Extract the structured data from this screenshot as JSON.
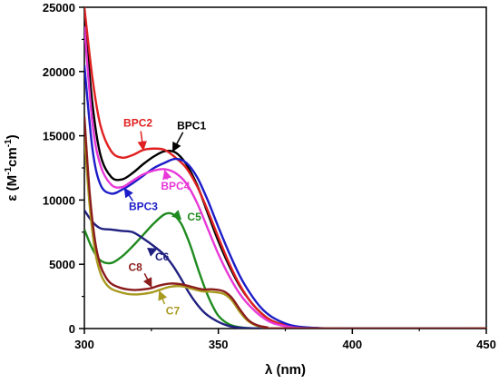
{
  "chart_data": {
    "type": "line",
    "xlabel": "λ (nm)",
    "ylabel_main": "ε (M",
    "ylabel_sup1": "-1",
    "ylabel_mid": "cm",
    "ylabel_sup2": "-1",
    "ylabel_end": ")",
    "xlim": [
      300,
      450
    ],
    "ylim": [
      0,
      25000
    ],
    "xticks": [
      300,
      350,
      400,
      450
    ],
    "yticks": [
      0,
      5000,
      10000,
      15000,
      20000,
      25000
    ],
    "grid": false,
    "series": [
      {
        "name": "BPC1",
        "color": "#000000",
        "x": [
          300,
          303,
          306,
          310,
          314,
          318,
          322,
          326,
          330,
          334,
          338,
          342,
          346,
          350,
          354,
          358,
          362,
          366,
          370,
          375,
          380,
          390,
          400,
          420,
          450
        ],
        "y": [
          24500,
          17500,
          13500,
          11800,
          11600,
          12100,
          12800,
          13400,
          13800,
          13700,
          12800,
          11200,
          9000,
          6800,
          4900,
          3300,
          2100,
          1200,
          600,
          250,
          80,
          10,
          0,
          0,
          0
        ]
      },
      {
        "name": "BPC2",
        "color": "#e02020",
        "x": [
          300,
          303,
          306,
          310,
          314,
          318,
          322,
          326,
          330,
          334,
          338,
          342,
          346,
          350,
          354,
          358,
          362,
          366,
          370,
          375,
          380,
          390,
          400,
          420,
          450
        ],
        "y": [
          25000,
          19500,
          15800,
          13800,
          13300,
          13500,
          13900,
          14000,
          13900,
          13300,
          12500,
          11100,
          9200,
          7100,
          5100,
          3400,
          2100,
          1200,
          600,
          250,
          80,
          10,
          0,
          0,
          0
        ]
      },
      {
        "name": "BPC3",
        "color": "#1c1cc8",
        "x": [
          300,
          303,
          306,
          310,
          314,
          318,
          322,
          326,
          330,
          334,
          338,
          342,
          346,
          350,
          354,
          358,
          362,
          366,
          370,
          375,
          380,
          390,
          400,
          420,
          450
        ],
        "y": [
          20500,
          14000,
          11200,
          10500,
          10800,
          11300,
          11900,
          12500,
          12900,
          13200,
          12900,
          11800,
          10000,
          7900,
          5900,
          4100,
          2700,
          1600,
          900,
          400,
          150,
          20,
          0,
          0,
          0
        ]
      },
      {
        "name": "BPC4",
        "color": "#e838d8",
        "x": [
          300,
          303,
          306,
          310,
          314,
          318,
          322,
          326,
          330,
          334,
          338,
          342,
          346,
          350,
          354,
          358,
          362,
          366,
          370,
          375,
          380,
          390,
          400,
          420,
          450
        ],
        "y": [
          23500,
          16000,
          12700,
          11200,
          11000,
          11500,
          12000,
          12300,
          12400,
          12100,
          11300,
          9800,
          7800,
          5800,
          4100,
          2700,
          1700,
          950,
          450,
          180,
          50,
          5,
          0,
          0,
          0
        ]
      },
      {
        "name": "C5",
        "color": "#1f8a1f",
        "x": [
          300,
          303,
          306,
          310,
          314,
          318,
          322,
          326,
          330,
          333,
          336,
          338,
          340,
          342,
          344,
          346,
          348,
          350,
          353,
          356,
          360,
          365,
          370,
          380,
          450
        ],
        "y": [
          7700,
          6200,
          5300,
          5100,
          5600,
          6400,
          7300,
          8200,
          8900,
          8900,
          8200,
          7300,
          6200,
          4900,
          3700,
          2600,
          1700,
          1000,
          450,
          180,
          50,
          10,
          0,
          0,
          0
        ]
      },
      {
        "name": "C6",
        "color": "#202080",
        "x": [
          300,
          303,
          306,
          310,
          314,
          318,
          322,
          326,
          330,
          333,
          336,
          339,
          342,
          345,
          348,
          351,
          354,
          357,
          360,
          365,
          370,
          380,
          450
        ],
        "y": [
          9200,
          8300,
          7800,
          7700,
          7600,
          7500,
          7000,
          6400,
          5700,
          4900,
          3900,
          2800,
          1900,
          1200,
          750,
          420,
          200,
          90,
          40,
          10,
          0,
          0,
          0
        ]
      },
      {
        "name": "C7",
        "color": "#a89a20",
        "x": [
          300,
          302,
          304,
          306,
          308,
          310,
          313,
          316,
          319,
          322,
          325,
          328,
          332,
          336,
          340,
          344,
          348,
          352,
          355,
          358,
          361,
          364,
          368,
          375,
          450
        ],
        "y": [
          15000,
          9500,
          6000,
          4300,
          3500,
          3100,
          2850,
          2700,
          2650,
          2700,
          2800,
          3000,
          3250,
          3300,
          3100,
          2900,
          2850,
          2700,
          2200,
          1300,
          600,
          250,
          80,
          0,
          0
        ]
      },
      {
        "name": "C8",
        "color": "#8b1c1c",
        "x": [
          300,
          302,
          304,
          306,
          308,
          310,
          313,
          316,
          319,
          322,
          325,
          328,
          332,
          336,
          340,
          344,
          348,
          352,
          355,
          358,
          361,
          364,
          368,
          375,
          450
        ],
        "y": [
          16500,
          10500,
          6800,
          4900,
          4000,
          3500,
          3200,
          3050,
          3000,
          3050,
          3150,
          3350,
          3500,
          3450,
          3250,
          3050,
          3050,
          2900,
          2400,
          1500,
          700,
          300,
          100,
          0,
          0
        ]
      }
    ],
    "labels": [
      {
        "text": "BPC1",
        "color": "#000000",
        "at": [
          340,
          15500
        ],
        "arrow_to": [
          333,
          13800
        ]
      },
      {
        "text": "BPC2",
        "color": "#e02020",
        "at": [
          320,
          15700
        ],
        "arrow_to": [
          322,
          13900
        ]
      },
      {
        "text": "BPC3",
        "color": "#1c1cc8",
        "at": [
          322,
          9200
        ],
        "arrow_to": [
          315,
          10900
        ]
      },
      {
        "text": "BPC4",
        "color": "#e838d8",
        "at": [
          334,
          10800
        ],
        "arrow_to": [
          330,
          12300
        ]
      },
      {
        "text": "C5",
        "color": "#1f8a1f",
        "at": [
          341,
          8400
        ],
        "arrow_to": [
          336,
          8500
        ]
      },
      {
        "text": "C6",
        "color": "#202080",
        "at": [
          329,
          5300
        ],
        "arrow_to": [
          327,
          6200
        ]
      },
      {
        "text": "C7",
        "color": "#a89a20",
        "at": [
          333,
          1100
        ],
        "arrow_to": [
          328,
          2900
        ]
      },
      {
        "text": "C8",
        "color": "#8b1c1c",
        "at": [
          319,
          4500
        ],
        "arrow_to": [
          325,
          3250
        ]
      }
    ]
  }
}
